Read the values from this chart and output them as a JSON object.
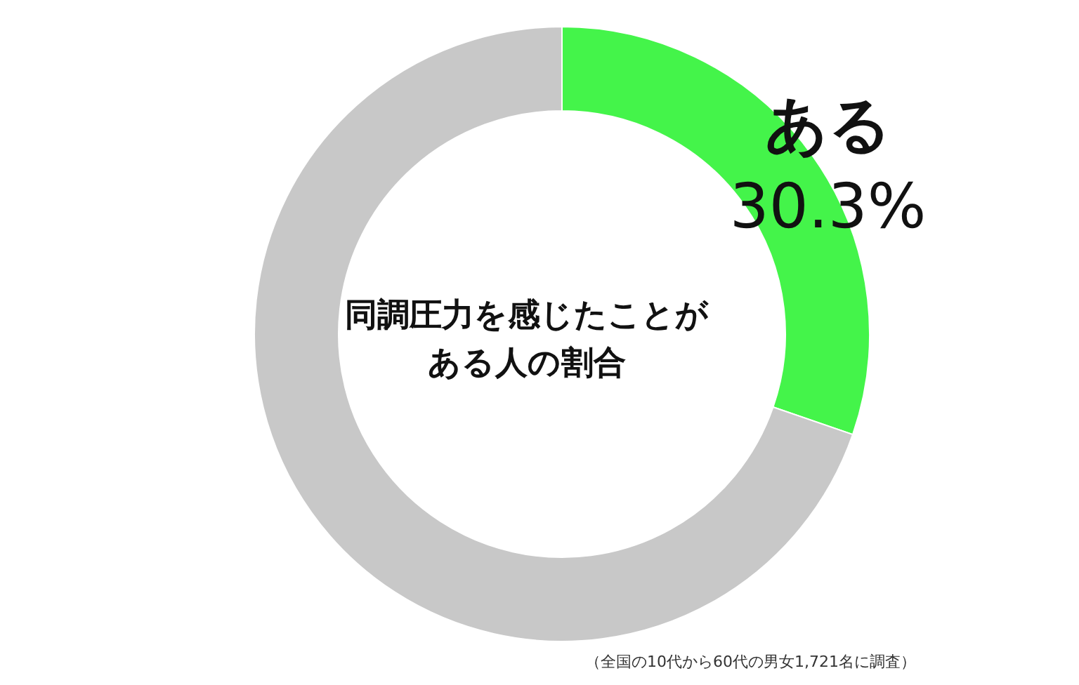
{
  "chart_data": {
    "type": "donut",
    "title": "同調圧力を感じたことがある人の割合",
    "categories": [
      "ある",
      null
    ],
    "values": [
      30.3,
      69.7
    ],
    "colors": [
      "#44f44a",
      "#c8c8c8"
    ],
    "value_labels": [
      "30.3%",
      null
    ],
    "annotations": [
      "（全国の10代から60代の男女1,721名に調査）"
    ]
  }
}
